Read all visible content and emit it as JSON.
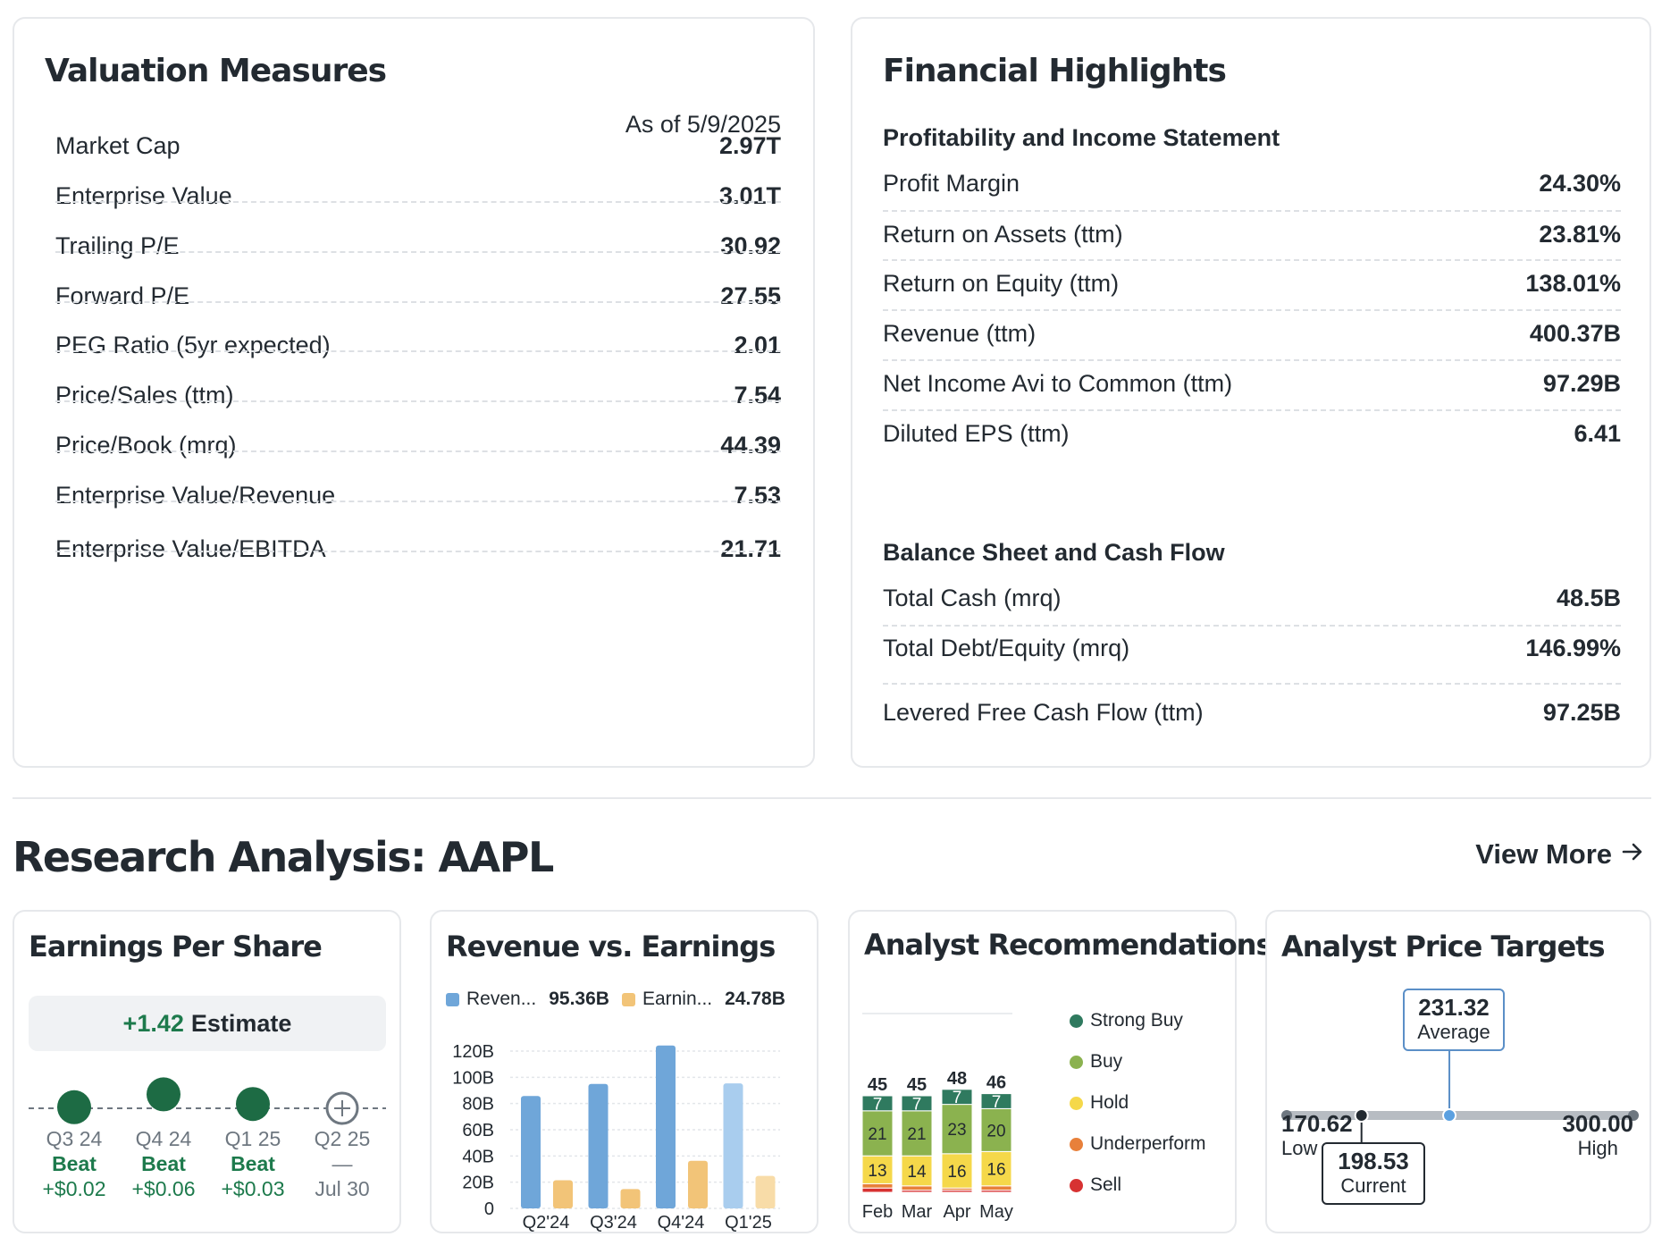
{
  "valuation": {
    "title": "Valuation Measures",
    "as_of": "As of 5/9/2025",
    "rows": [
      {
        "label": "Market Cap",
        "value": "2.97T"
      },
      {
        "label": "Enterprise Value",
        "value": "3.01T"
      },
      {
        "label": "Trailing P/E",
        "value": "30.92"
      },
      {
        "label": "Forward P/E",
        "value": "27.55"
      },
      {
        "label": "PEG Ratio (5yr expected)",
        "value": "2.01"
      },
      {
        "label": "Price/Sales (ttm)",
        "value": "7.54"
      },
      {
        "label": "Price/Book (mrq)",
        "value": "44.39"
      },
      {
        "label": "Enterprise Value/Revenue",
        "value": "7.53"
      },
      {
        "label": "Enterprise Value/EBITDA",
        "value": "21.71"
      }
    ]
  },
  "financial": {
    "title": "Financial Highlights",
    "profitability": {
      "heading": "Profitability and Income Statement",
      "rows": [
        {
          "label": "Profit Margin",
          "value": "24.30%"
        },
        {
          "label": "Return on Assets (ttm)",
          "value": "23.81%"
        },
        {
          "label": "Return on Equity (ttm)",
          "value": "138.01%"
        },
        {
          "label": "Revenue (ttm)",
          "value": "400.37B"
        },
        {
          "label": "Net Income Avi to Common (ttm)",
          "value": "97.29B"
        },
        {
          "label": "Diluted EPS (ttm)",
          "value": "6.41"
        }
      ]
    },
    "balance": {
      "heading": "Balance Sheet and Cash Flow",
      "rows": [
        {
          "label": "Total Cash (mrq)",
          "value": "48.5B"
        },
        {
          "label": "Total Debt/Equity (mrq)",
          "value": "146.99%"
        },
        {
          "label": "Levered Free Cash Flow (ttm)",
          "value": "97.25B"
        }
      ]
    }
  },
  "research": {
    "title": "Research Analysis: AAPL",
    "view_more": "View More",
    "view_more_icon": "arrow-right-icon"
  },
  "eps": {
    "title": "Earnings Per Share",
    "estimate_value": "+1.42",
    "estimate_label": "Estimate",
    "quarters": [
      {
        "q": "Q3 24",
        "status": "Beat",
        "amount": "+$0.02",
        "level": 0.02,
        "reported": true
      },
      {
        "q": "Q4 24",
        "status": "Beat",
        "amount": "+$0.06",
        "level": 0.06,
        "reported": true
      },
      {
        "q": "Q1 25",
        "status": "Beat",
        "amount": "+$0.03",
        "level": 0.03,
        "reported": true
      },
      {
        "q": "Q2 25",
        "status": "—",
        "amount": "Jul 30",
        "level": 0,
        "reported": false
      }
    ]
  },
  "revenue_earnings": {
    "title": "Revenue vs. Earnings",
    "legend_revenue": "Reven...",
    "legend_revenue_value": "95.36B",
    "legend_earnings": "Earnin...",
    "legend_earnings_value": "24.78B",
    "colors": {
      "revenue": "#6fa6d9",
      "earnings": "#f2c478",
      "revenue_light": "#a9cdee",
      "earnings_light": "#f8dca8"
    }
  },
  "chart_data": [
    {
      "type": "bar",
      "title": "Revenue vs. Earnings",
      "categories": [
        "Q2'24",
        "Q3'24",
        "Q4'24",
        "Q1'25"
      ],
      "series": [
        {
          "name": "Revenue",
          "values": [
            85.78,
            94.93,
            124.3,
            95.36
          ]
        },
        {
          "name": "Earnings",
          "values": [
            21.45,
            14.74,
            36.33,
            24.78
          ]
        }
      ],
      "yticks": [
        "0",
        "20B",
        "40B",
        "60B",
        "80B",
        "100B",
        "120B"
      ],
      "ylim": [
        0,
        125
      ]
    },
    {
      "type": "bar",
      "stacked": true,
      "title": "Analyst Recommendations",
      "categories": [
        "Feb",
        "Mar",
        "Apr",
        "May"
      ],
      "totals": [
        45,
        45,
        48,
        46
      ],
      "series": [
        {
          "name": "Strong Buy",
          "values": [
            7,
            7,
            7,
            7
          ]
        },
        {
          "name": "Buy",
          "values": [
            21,
            21,
            23,
            20
          ]
        },
        {
          "name": "Hold",
          "values": [
            13,
            14,
            16,
            16
          ]
        },
        {
          "name": "Underperform",
          "values": [
            2,
            2,
            1,
            2
          ]
        },
        {
          "name": "Sell",
          "values": [
            2,
            1,
            1,
            1
          ]
        }
      ]
    }
  ],
  "analyst_rec": {
    "title": "Analyst Recommendations",
    "legend": [
      {
        "name": "Strong Buy",
        "color": "#2f7a5f"
      },
      {
        "name": "Buy",
        "color": "#8bb24f"
      },
      {
        "name": "Hold",
        "color": "#f5d84a"
      },
      {
        "name": "Underperform",
        "color": "#e8803a"
      },
      {
        "name": "Sell",
        "color": "#d73232"
      }
    ]
  },
  "price_targets": {
    "title": "Analyst Price Targets",
    "low": "170.62",
    "low_label": "Low",
    "high": "300.00",
    "high_label": "High",
    "average": "231.32",
    "average_label": "Average",
    "current": "198.53",
    "current_label": "Current",
    "range": {
      "low": 170.62,
      "high": 300.0,
      "average": 231.32,
      "current": 198.53
    }
  }
}
